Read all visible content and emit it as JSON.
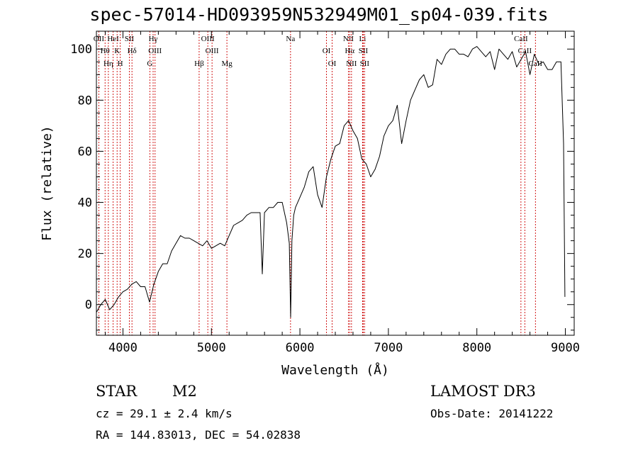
{
  "title": "spec-57014-HD093959N532949M01_sp04-039.fits",
  "info": {
    "class": "STAR",
    "subclass": "M2",
    "survey": "LAMOST DR3",
    "cz": "cz = 29.1 ± 2.4 km/s",
    "obs_date": "Obs-Date: 20141222",
    "radec": "RA = 144.83013, DEC =  54.02838"
  },
  "colors": {
    "line_markers": "#cc0000",
    "spectrum": "#000000"
  },
  "chart_data": {
    "type": "line",
    "title": "spec-57014-HD093959N532949M01_sp04-039.fits",
    "xlabel": "Wavelength (Å)",
    "ylabel": "Flux (relative)",
    "xlim": [
      3700,
      9100
    ],
    "ylim": [
      -12,
      107
    ],
    "xticks": [
      4000,
      5000,
      6000,
      7000,
      8000,
      9000
    ],
    "yticks": [
      0,
      20,
      40,
      60,
      80,
      100
    ],
    "grid": false,
    "series": [
      {
        "x": [
          3700,
          3750,
          3800,
          3850,
          3900,
          3950,
          4000,
          4050,
          4100,
          4150,
          4200,
          4250,
          4300,
          4350,
          4400,
          4450,
          4500,
          4550,
          4600,
          4650,
          4700,
          4750,
          4800,
          4850,
          4900,
          4950,
          5000,
          5050,
          5100,
          5150,
          5200,
          5250,
          5300,
          5350,
          5400,
          5450,
          5500,
          5550,
          5575,
          5600,
          5650,
          5700,
          5750,
          5800,
          5850,
          5880,
          5895,
          5910,
          5930,
          5950,
          6000,
          6050,
          6100,
          6150,
          6200,
          6250,
          6300,
          6350,
          6400,
          6450,
          6500,
          6550,
          6600,
          6650,
          6700,
          6750,
          6800,
          6850,
          6900,
          6950,
          7000,
          7050,
          7100,
          7150,
          7200,
          7250,
          7300,
          7350,
          7400,
          7450,
          7500,
          7550,
          7600,
          7650,
          7700,
          7750,
          7800,
          7850,
          7900,
          7950,
          8000,
          8050,
          8100,
          8150,
          8200,
          8250,
          8300,
          8350,
          8400,
          8450,
          8500,
          8550,
          8600,
          8650,
          8700,
          8750,
          8800,
          8850,
          8900,
          8950,
          8980,
          8995
        ],
        "y": [
          -3,
          0,
          2,
          -2,
          0,
          3,
          5,
          6,
          8,
          9,
          7,
          7,
          1,
          8,
          13,
          16,
          16,
          21,
          24,
          27,
          26,
          26,
          25,
          24,
          23,
          25,
          22,
          23,
          24,
          23,
          27,
          31,
          32,
          33,
          35,
          36,
          36,
          36,
          12,
          36,
          38,
          38,
          40,
          40,
          32,
          24,
          -5,
          25,
          35,
          38,
          42,
          46,
          52,
          54,
          43,
          38,
          50,
          57,
          62,
          63,
          70,
          72,
          68,
          65,
          57,
          55,
          50,
          53,
          58,
          66,
          70,
          72,
          78,
          63,
          72,
          80,
          84,
          88,
          90,
          85,
          86,
          96,
          94,
          98,
          100,
          100,
          98,
          98,
          97,
          100,
          101,
          99,
          97,
          99,
          92,
          100,
          98,
          96,
          99,
          93,
          96,
          99,
          90,
          98,
          94,
          95,
          92,
          92,
          95,
          95,
          63,
          3
        ]
      }
    ],
    "line_markers": [
      {
        "wl": 3727,
        "label": "OII"
      },
      {
        "wl": 3798,
        "label": "Hθ"
      },
      {
        "wl": 3835,
        "label": "Hη"
      },
      {
        "wl": 3889,
        "label": "HeI"
      },
      {
        "wl": 3934,
        "label": "K"
      },
      {
        "wl": 3969,
        "label": "H"
      },
      {
        "wl": 4072,
        "label": "SII"
      },
      {
        "wl": 4102,
        "label": "Hδ"
      },
      {
        "wl": 4304,
        "label": "G"
      },
      {
        "wl": 4341,
        "label": "Hγ"
      },
      {
        "wl": 4363,
        "label": "OIII"
      },
      {
        "wl": 4861,
        "label": "Hβ"
      },
      {
        "wl": 4959,
        "label": "OIII"
      },
      {
        "wl": 5007,
        "label": "OIII"
      },
      {
        "wl": 5175,
        "label": "Mg"
      },
      {
        "wl": 5894,
        "label": "Na"
      },
      {
        "wl": 6300,
        "label": "OI"
      },
      {
        "wl": 6364,
        "label": "OI"
      },
      {
        "wl": 6548,
        "label": "NII"
      },
      {
        "wl": 6563,
        "label": "Hα"
      },
      {
        "wl": 6583,
        "label": "NII"
      },
      {
        "wl": 6708,
        "label": "Li"
      },
      {
        "wl": 6716,
        "label": "SII"
      },
      {
        "wl": 6731,
        "label": "SII"
      },
      {
        "wl": 8498,
        "label": "CaII"
      },
      {
        "wl": 8542,
        "label": "CaII"
      },
      {
        "wl": 8662,
        "label": "CaII"
      }
    ]
  }
}
